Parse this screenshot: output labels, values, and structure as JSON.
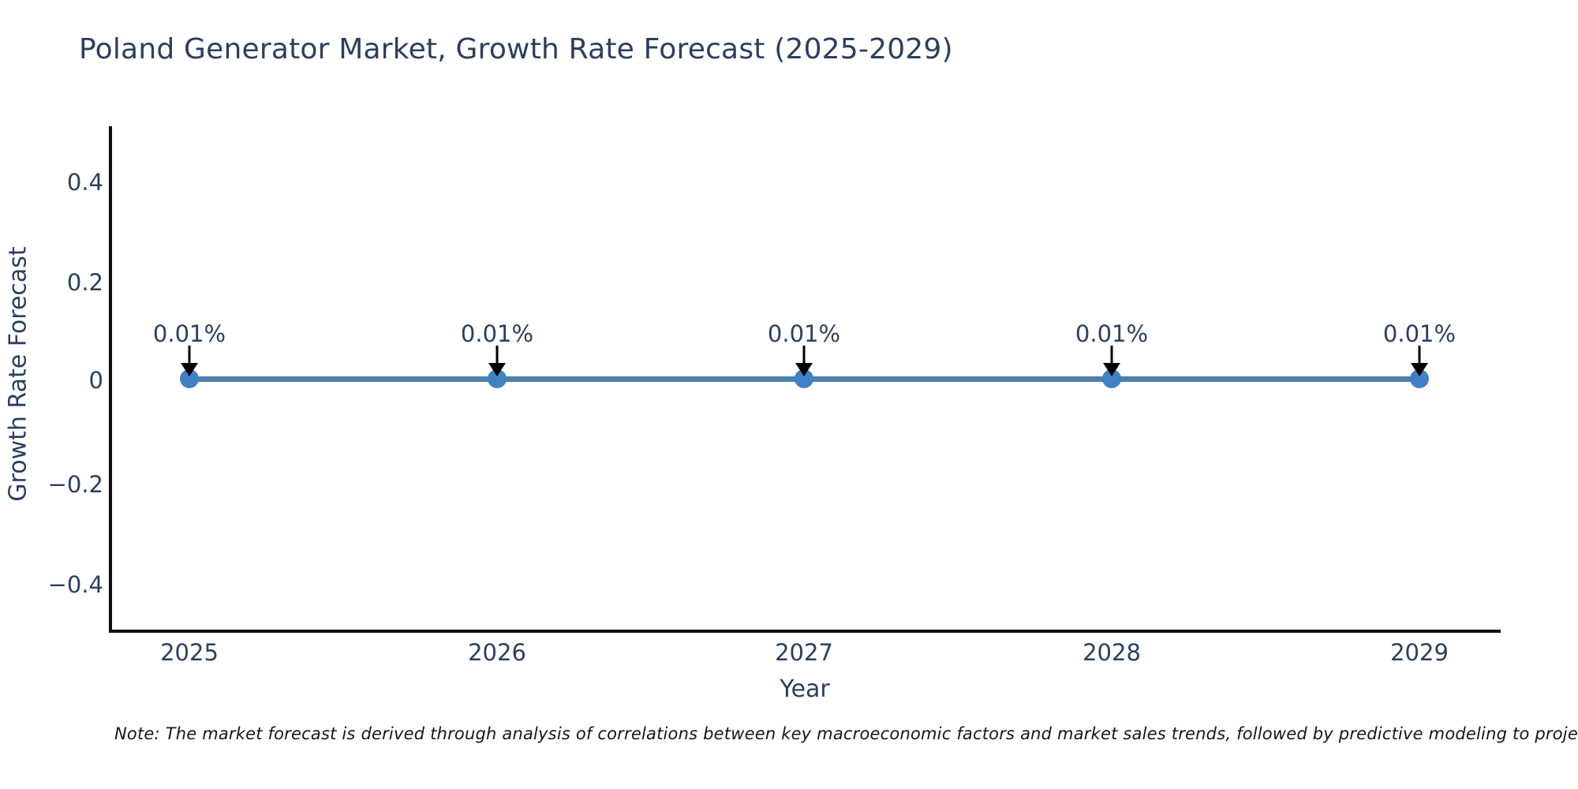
{
  "header": {
    "title": "Poland Generator Market, Growth Rate Forecast (2025-2029)"
  },
  "chart_data": {
    "type": "line",
    "title": "Poland Generator Market, Growth Rate Forecast (2025-2029)",
    "xlabel": "Year",
    "ylabel": "Growth Rate Forecast",
    "x": [
      2025,
      2026,
      2027,
      2028,
      2029
    ],
    "xtick_labels": [
      "2025",
      "2026",
      "2027",
      "2028",
      "2029"
    ],
    "series": [
      {
        "name": "Growth Rate Forecast",
        "values": [
          0.01,
          0.01,
          0.01,
          0.01,
          0.01
        ]
      }
    ],
    "point_labels": [
      "0.01%",
      "0.01%",
      "0.01%",
      "0.01%",
      "0.01%"
    ],
    "ytick_labels": [
      "0.4",
      "0.2",
      "0",
      "−0.2",
      "−0.4"
    ],
    "ytick_values": [
      0.4,
      0.2,
      0,
      -0.2,
      -0.4
    ],
    "ylim": [
      -0.51,
      0.51
    ],
    "grid": false,
    "legend_position": "none",
    "colors": {
      "line": "#4d81ad",
      "marker": "#3f81c4",
      "arrow": "#000000",
      "axis": "#0d0d0d",
      "text": "#2a3f5f"
    }
  },
  "note": {
    "text": "Note: The market forecast is derived through analysis of correlations between key macroeconomic factors and market sales trends, followed by predictive modeling to project future sales."
  }
}
